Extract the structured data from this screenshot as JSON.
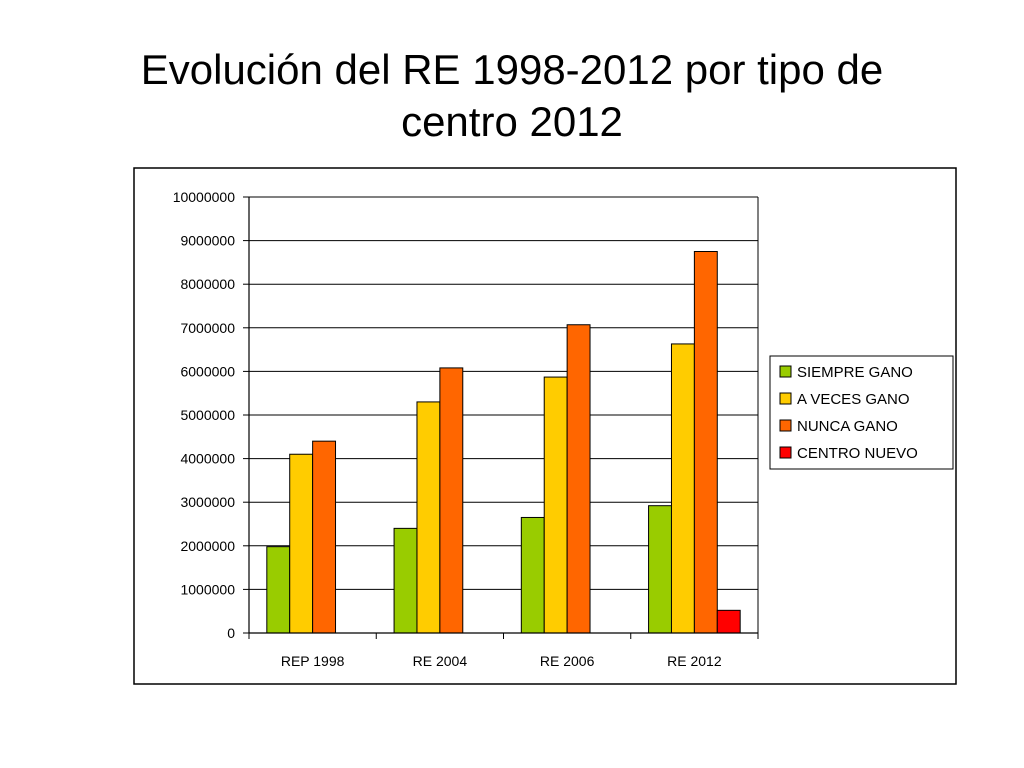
{
  "slide": {
    "title_line1": "Evolución del RE 1998-2012 por tipo de",
    "title_line2": "centro 2012"
  },
  "chart_data": {
    "type": "bar",
    "categories": [
      "REP 1998",
      "RE 2004",
      "RE 2006",
      "RE 2012"
    ],
    "series": [
      {
        "name": "SIEMPRE GANO",
        "color": "#99cc00",
        "values": [
          1980000,
          2400000,
          2650000,
          2920000
        ]
      },
      {
        "name": "A VECES GANO",
        "color": "#ffcc00",
        "values": [
          4100000,
          5300000,
          5870000,
          6630000
        ]
      },
      {
        "name": "NUNCA GANO",
        "color": "#ff6600",
        "values": [
          4400000,
          6080000,
          7070000,
          8750000
        ]
      },
      {
        "name": "CENTRO NUEVO",
        "color": "#ff0000",
        "values": [
          null,
          null,
          null,
          520000
        ]
      }
    ],
    "ylim": [
      0,
      10000000
    ],
    "yticks": [
      0,
      1000000,
      2000000,
      3000000,
      4000000,
      5000000,
      6000000,
      7000000,
      8000000,
      9000000,
      10000000
    ],
    "ytick_labels": [
      "0",
      "1000000",
      "2000000",
      "3000000",
      "4000000",
      "5000000",
      "6000000",
      "7000000",
      "8000000",
      "9000000",
      "10000000"
    ],
    "grid": true,
    "legend_position": "right",
    "xlabel": "",
    "ylabel": ""
  }
}
